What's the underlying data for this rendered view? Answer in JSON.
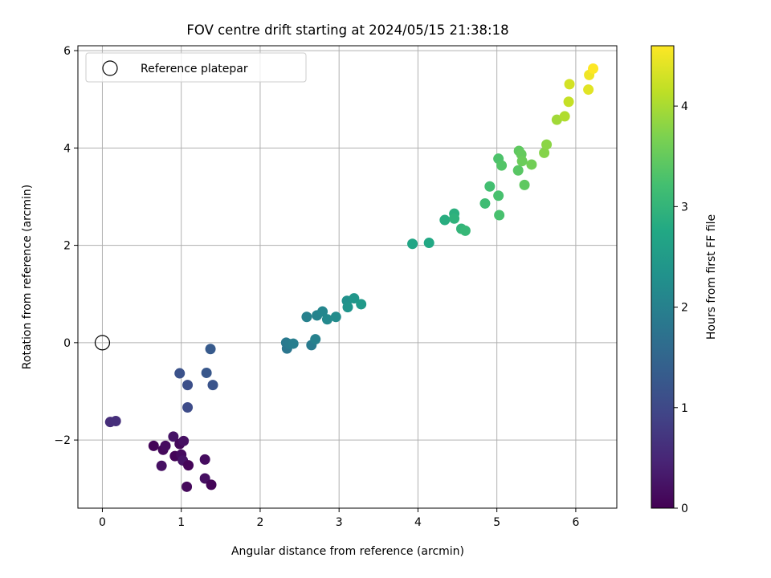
{
  "chart_data": {
    "type": "scatter",
    "title": "FOV centre drift starting at 2024/05/15 21:38:18",
    "xlabel": "Angular distance from reference (arcmin)",
    "ylabel": "Rotation from reference (arcmin)",
    "xlim": [
      -0.31,
      6.52
    ],
    "ylim": [
      -3.4,
      6.1
    ],
    "x_ticks": [
      "0",
      "1",
      "2",
      "3",
      "4",
      "5",
      "6"
    ],
    "y_ticks": [
      "−2",
      "0",
      "2",
      "4",
      "6"
    ],
    "grid": true,
    "legend": {
      "position": "top-left",
      "label": "Reference platepar"
    },
    "colorbar": {
      "label": "Hours from first FF file",
      "colormap": "viridis",
      "range": [
        0,
        4.6
      ],
      "ticks": [
        "0",
        "1",
        "2",
        "3",
        "4"
      ]
    },
    "reference_point": {
      "x": 0,
      "y": 0
    },
    "points": [
      {
        "x": 0.1,
        "y": -1.63,
        "h": 0.6
      },
      {
        "x": 0.17,
        "y": -1.61,
        "h": 0.62
      },
      {
        "x": 0.65,
        "y": -2.12,
        "h": 0.05
      },
      {
        "x": 0.77,
        "y": -2.2,
        "h": 0.1
      },
      {
        "x": 0.8,
        "y": -2.12,
        "h": 0.15
      },
      {
        "x": 0.75,
        "y": -2.53,
        "h": 0.2
      },
      {
        "x": 0.9,
        "y": -1.93,
        "h": 0.25
      },
      {
        "x": 0.92,
        "y": -2.33,
        "h": 0.05
      },
      {
        "x": 0.98,
        "y": -2.08,
        "h": 0.1
      },
      {
        "x": 1.0,
        "y": -2.3,
        "h": 0.15
      },
      {
        "x": 1.03,
        "y": -2.02,
        "h": 0.2
      },
      {
        "x": 1.02,
        "y": -2.42,
        "h": 0.25
      },
      {
        "x": 1.09,
        "y": -2.52,
        "h": 0.05
      },
      {
        "x": 1.07,
        "y": -2.96,
        "h": 0.1
      },
      {
        "x": 1.3,
        "y": -2.4,
        "h": 0.15
      },
      {
        "x": 1.3,
        "y": -2.79,
        "h": 0.2
      },
      {
        "x": 1.38,
        "y": -2.92,
        "h": 0.05
      },
      {
        "x": 0.98,
        "y": -0.63,
        "h": 1.15
      },
      {
        "x": 1.08,
        "y": -0.87,
        "h": 1.1
      },
      {
        "x": 1.08,
        "y": -1.33,
        "h": 1.05
      },
      {
        "x": 1.32,
        "y": -0.62,
        "h": 1.25
      },
      {
        "x": 1.37,
        "y": -0.13,
        "h": 1.3
      },
      {
        "x": 1.4,
        "y": -0.87,
        "h": 1.2
      },
      {
        "x": 2.33,
        "y": 0.0,
        "h": 1.85
      },
      {
        "x": 2.34,
        "y": -0.12,
        "h": 1.8
      },
      {
        "x": 2.37,
        "y": -0.03,
        "h": 1.9
      },
      {
        "x": 2.42,
        "y": -0.02,
        "h": 1.95
      },
      {
        "x": 2.59,
        "y": 0.53,
        "h": 2.0
      },
      {
        "x": 2.65,
        "y": -0.05,
        "h": 1.9
      },
      {
        "x": 2.7,
        "y": 0.07,
        "h": 2.0
      },
      {
        "x": 2.72,
        "y": 0.56,
        "h": 2.05
      },
      {
        "x": 2.79,
        "y": 0.64,
        "h": 2.1
      },
      {
        "x": 2.85,
        "y": 0.48,
        "h": 2.15
      },
      {
        "x": 2.96,
        "y": 0.53,
        "h": 2.2
      },
      {
        "x": 3.1,
        "y": 0.86,
        "h": 2.3
      },
      {
        "x": 3.11,
        "y": 0.73,
        "h": 2.35
      },
      {
        "x": 3.19,
        "y": 0.91,
        "h": 2.4
      },
      {
        "x": 3.28,
        "y": 0.79,
        "h": 2.45
      },
      {
        "x": 3.93,
        "y": 2.03,
        "h": 2.7
      },
      {
        "x": 4.14,
        "y": 2.05,
        "h": 2.75
      },
      {
        "x": 4.34,
        "y": 2.52,
        "h": 2.85
      },
      {
        "x": 4.46,
        "y": 2.65,
        "h": 2.9
      },
      {
        "x": 4.46,
        "y": 2.55,
        "h": 2.95
      },
      {
        "x": 4.55,
        "y": 2.34,
        "h": 3.0
      },
      {
        "x": 4.6,
        "y": 2.3,
        "h": 3.05
      },
      {
        "x": 4.85,
        "y": 2.86,
        "h": 3.15
      },
      {
        "x": 4.91,
        "y": 3.21,
        "h": 3.2
      },
      {
        "x": 5.02,
        "y": 3.02,
        "h": 3.25
      },
      {
        "x": 5.02,
        "y": 3.78,
        "h": 3.3
      },
      {
        "x": 5.03,
        "y": 2.62,
        "h": 3.25
      },
      {
        "x": 5.06,
        "y": 3.64,
        "h": 3.35
      },
      {
        "x": 5.27,
        "y": 3.54,
        "h": 3.4
      },
      {
        "x": 5.28,
        "y": 3.94,
        "h": 3.45
      },
      {
        "x": 5.31,
        "y": 3.87,
        "h": 3.5
      },
      {
        "x": 5.32,
        "y": 3.73,
        "h": 3.55
      },
      {
        "x": 5.35,
        "y": 3.24,
        "h": 3.45
      },
      {
        "x": 5.44,
        "y": 3.66,
        "h": 3.6
      },
      {
        "x": 5.6,
        "y": 3.9,
        "h": 3.75
      },
      {
        "x": 5.63,
        "y": 4.07,
        "h": 3.8
      },
      {
        "x": 5.76,
        "y": 4.58,
        "h": 3.95
      },
      {
        "x": 5.86,
        "y": 4.65,
        "h": 4.05
      },
      {
        "x": 5.91,
        "y": 4.95,
        "h": 4.2
      },
      {
        "x": 5.92,
        "y": 5.31,
        "h": 4.3
      },
      {
        "x": 6.16,
        "y": 5.2,
        "h": 4.4
      },
      {
        "x": 6.17,
        "y": 5.5,
        "h": 4.5
      },
      {
        "x": 6.22,
        "y": 5.63,
        "h": 4.6
      }
    ]
  }
}
